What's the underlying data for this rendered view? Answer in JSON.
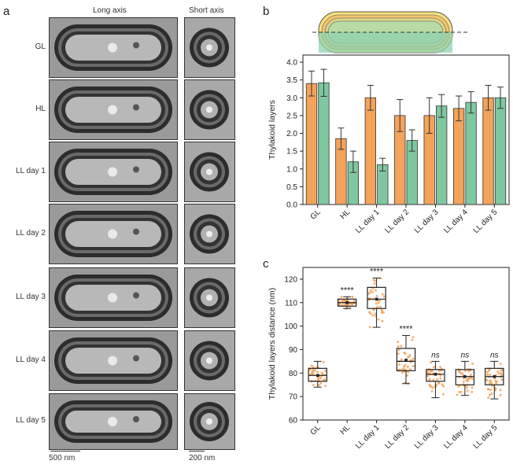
{
  "panel_a": {
    "letter": "a",
    "col_long": "Long axis",
    "col_short": "Short axis",
    "rows": [
      "GL",
      "HL",
      "LL day 1",
      "LL day 2",
      "LL day 3",
      "LL day 4",
      "LL day 5"
    ],
    "scale_long": "500 nm",
    "scale_short": "200 nm"
  },
  "panel_b": {
    "letter": "b"
  },
  "panel_c": {
    "letter": "c"
  },
  "colors": {
    "orange": "#f4a35b",
    "green": "#7fc7a0"
  },
  "chart_data": [
    {
      "type": "bar",
      "panel": "b",
      "ylabel": "Thylakoid layers",
      "ylim": [
        0,
        4.2
      ],
      "yticks": [
        "0.0",
        "0.5",
        "1.0",
        "1.5",
        "2.0",
        "2.5",
        "3.0",
        "3.5",
        "4.0"
      ],
      "categories": [
        "GL",
        "HL",
        "LL day 1",
        "LL day 2",
        "LL day 3",
        "LL day 4",
        "LL day 5"
      ],
      "series": [
        {
          "name": "Long axis",
          "color": "#f4a35b",
          "values": [
            3.4,
            1.85,
            3.0,
            2.5,
            2.5,
            2.7,
            3.0
          ],
          "err": [
            0.35,
            0.3,
            0.35,
            0.45,
            0.5,
            0.35,
            0.35
          ]
        },
        {
          "name": "Short axis",
          "color": "#7fc7a0",
          "values": [
            3.42,
            1.2,
            1.12,
            1.8,
            2.77,
            2.87,
            3.0
          ],
          "err": [
            0.38,
            0.3,
            0.18,
            0.3,
            0.32,
            0.3,
            0.3
          ]
        }
      ]
    },
    {
      "type": "box",
      "panel": "c",
      "ylabel": "Thylakoid layers distance (nm)",
      "ylim": [
        60,
        125
      ],
      "yticks": [
        "60",
        "70",
        "80",
        "90",
        "100",
        "110",
        "120"
      ],
      "categories": [
        "GL",
        "HL",
        "LL day 1",
        "LL day 2",
        "LL day 3",
        "LL day 4",
        "LL day 5"
      ],
      "q1": [
        76.5,
        108.5,
        107.5,
        81,
        76.5,
        75,
        75
      ],
      "median": [
        79,
        110,
        111.5,
        85,
        79.5,
        78.5,
        78.5
      ],
      "q3": [
        82,
        111.5,
        116.5,
        90.5,
        81.5,
        81.5,
        82
      ],
      "whisker_low": [
        74,
        107.5,
        99.5,
        75.5,
        69.5,
        70.5,
        69
      ],
      "whisker_high": [
        85,
        112.5,
        120.5,
        96,
        85,
        85,
        85
      ],
      "mean": [
        79,
        110,
        111.5,
        85.5,
        79.5,
        78.5,
        78.5
      ],
      "significance": [
        "",
        "****",
        "****",
        "****",
        "ns",
        "ns",
        "ns"
      ]
    }
  ]
}
